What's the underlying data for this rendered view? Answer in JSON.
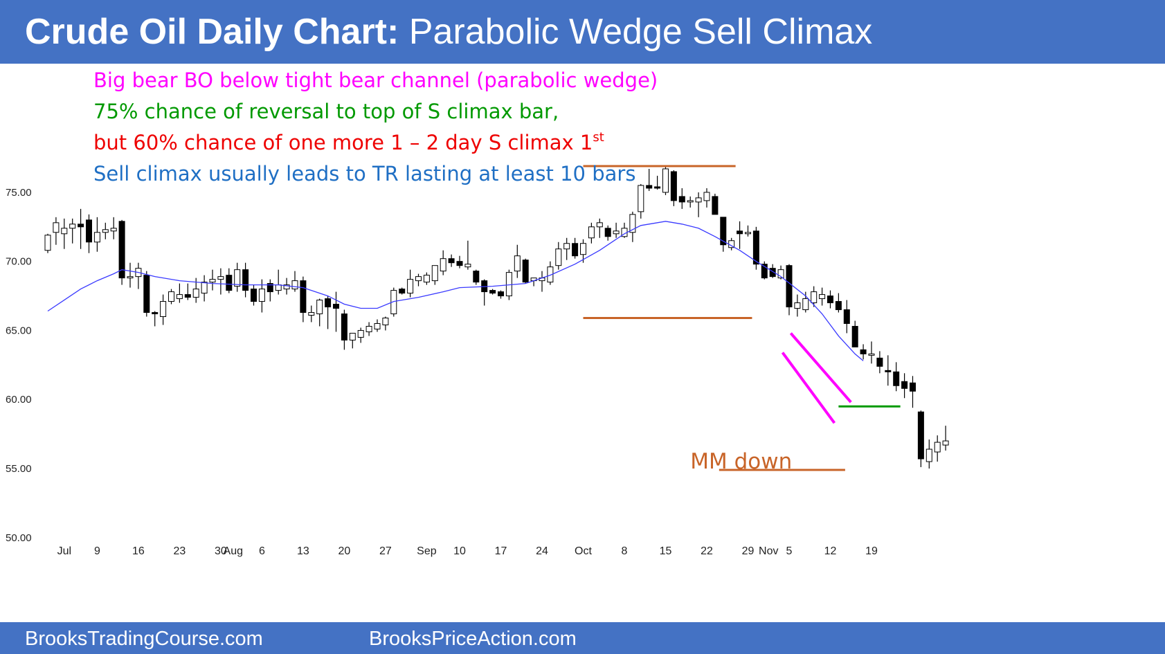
{
  "header": {
    "title_bold": "Crude Oil Daily Chart:",
    "title_rest": " Parabolic Wedge Sell Climax"
  },
  "footer": {
    "left_link": "BrooksTradingCourse.com",
    "right_link": "BrooksPriceAction.com"
  },
  "colors": {
    "header_bg": "#4472c4",
    "magenta": "#ff00ff",
    "green": "#009900",
    "red": "#ee0000",
    "blue_text": "#1f6fc4",
    "orange": "#c86428",
    "ema": "#3a3aff",
    "bull_fill": "#ffffff",
    "bear_fill": "#000000"
  },
  "annotations": [
    {
      "text": "Big bear BO below tight bear channel (parabolic wedge)",
      "color": "#ff00ff"
    },
    {
      "text": "75% chance of reversal to top of S climax bar,",
      "color": "#009900"
    },
    {
      "text": "but 60% chance of one more 1 – 2 day S climax 1",
      "sup": "st",
      "color": "#ee0000"
    },
    {
      "text": "Sell climax usually leads to TR lasting at least 10 bars",
      "color": "#1f6fc4"
    }
  ],
  "chart_data": {
    "type": "candlestick",
    "y_ticks": [
      "50.00",
      "55.00",
      "60.00",
      "65.00",
      "70.00",
      "75.00"
    ],
    "y_values": [
      50,
      55,
      60,
      65,
      70,
      75
    ],
    "ylim": [
      49,
      79
    ],
    "x_labels": [
      {
        "label": "Jul",
        "bar": 2
      },
      {
        "label": "9",
        "bar": 6
      },
      {
        "label": "16",
        "bar": 11
      },
      {
        "label": "23",
        "bar": 16
      },
      {
        "label": "30",
        "bar": 21
      },
      {
        "label": "Aug",
        "bar": 22.5
      },
      {
        "label": "6",
        "bar": 26
      },
      {
        "label": "13",
        "bar": 31
      },
      {
        "label": "20",
        "bar": 36
      },
      {
        "label": "27",
        "bar": 41
      },
      {
        "label": "Sep",
        "bar": 46
      },
      {
        "label": "10",
        "bar": 50
      },
      {
        "label": "17",
        "bar": 55
      },
      {
        "label": "24",
        "bar": 60
      },
      {
        "label": "Oct",
        "bar": 65
      },
      {
        "label": "8",
        "bar": 70
      },
      {
        "label": "15",
        "bar": 75
      },
      {
        "label": "22",
        "bar": 80
      },
      {
        "label": "29",
        "bar": 85
      },
      {
        "label": "Nov",
        "bar": 87.5
      },
      {
        "label": "5",
        "bar": 90
      },
      {
        "label": "12",
        "bar": 95
      },
      {
        "label": "19",
        "bar": 100
      }
    ],
    "candles": [
      {
        "o": 70.8,
        "h": 72.0,
        "l": 70.6,
        "c": 71.9
      },
      {
        "o": 72.1,
        "h": 73.2,
        "l": 71.2,
        "c": 72.8
      },
      {
        "o": 72.0,
        "h": 73.1,
        "l": 70.9,
        "c": 72.4
      },
      {
        "o": 72.4,
        "h": 73.1,
        "l": 71.3,
        "c": 72.7
      },
      {
        "o": 72.7,
        "h": 73.8,
        "l": 70.9,
        "c": 72.5
      },
      {
        "o": 73.0,
        "h": 73.4,
        "l": 70.6,
        "c": 71.4
      },
      {
        "o": 71.4,
        "h": 73.2,
        "l": 70.7,
        "c": 72.1
      },
      {
        "o": 72.1,
        "h": 72.8,
        "l": 71.6,
        "c": 72.3
      },
      {
        "o": 72.2,
        "h": 73.2,
        "l": 71.6,
        "c": 72.4
      },
      {
        "o": 72.9,
        "h": 73.0,
        "l": 68.3,
        "c": 68.8
      },
      {
        "o": 68.8,
        "h": 69.9,
        "l": 68.1,
        "c": 68.9
      },
      {
        "o": 68.9,
        "h": 69.9,
        "l": 68.0,
        "c": 69.5
      },
      {
        "o": 69.0,
        "h": 69.3,
        "l": 66.0,
        "c": 66.3
      },
      {
        "o": 66.3,
        "h": 66.4,
        "l": 65.3,
        "c": 66.2
      },
      {
        "o": 66.0,
        "h": 67.6,
        "l": 65.4,
        "c": 67.1
      },
      {
        "o": 67.1,
        "h": 68.0,
        "l": 66.9,
        "c": 67.8
      },
      {
        "o": 67.3,
        "h": 68.4,
        "l": 67.0,
        "c": 67.6
      },
      {
        "o": 67.6,
        "h": 68.4,
        "l": 67.2,
        "c": 67.4
      },
      {
        "o": 67.4,
        "h": 68.8,
        "l": 67.0,
        "c": 68.0
      },
      {
        "o": 67.7,
        "h": 69.0,
        "l": 67.1,
        "c": 68.5
      },
      {
        "o": 68.5,
        "h": 69.4,
        "l": 67.9,
        "c": 68.7
      },
      {
        "o": 68.7,
        "h": 69.5,
        "l": 67.6,
        "c": 68.9
      },
      {
        "o": 69.0,
        "h": 69.5,
        "l": 67.7,
        "c": 67.9
      },
      {
        "o": 68.2,
        "h": 69.9,
        "l": 67.8,
        "c": 69.4
      },
      {
        "o": 69.4,
        "h": 69.9,
        "l": 67.4,
        "c": 67.9
      },
      {
        "o": 68.0,
        "h": 68.3,
        "l": 66.8,
        "c": 67.1
      },
      {
        "o": 67.1,
        "h": 68.7,
        "l": 66.3,
        "c": 68.0
      },
      {
        "o": 68.4,
        "h": 68.7,
        "l": 67.1,
        "c": 67.8
      },
      {
        "o": 67.9,
        "h": 69.4,
        "l": 67.6,
        "c": 68.3
      },
      {
        "o": 68.0,
        "h": 68.8,
        "l": 67.6,
        "c": 68.3
      },
      {
        "o": 68.0,
        "h": 69.3,
        "l": 67.8,
        "c": 68.6
      },
      {
        "o": 68.6,
        "h": 68.9,
        "l": 65.6,
        "c": 66.3
      },
      {
        "o": 66.1,
        "h": 66.8,
        "l": 65.6,
        "c": 66.3
      },
      {
        "o": 66.2,
        "h": 67.3,
        "l": 65.3,
        "c": 67.2
      },
      {
        "o": 67.3,
        "h": 67.5,
        "l": 65.1,
        "c": 66.7
      },
      {
        "o": 66.9,
        "h": 67.8,
        "l": 64.9,
        "c": 66.6
      },
      {
        "o": 66.2,
        "h": 66.5,
        "l": 63.6,
        "c": 64.3
      },
      {
        "o": 64.3,
        "h": 64.7,
        "l": 63.7,
        "c": 64.8
      },
      {
        "o": 64.5,
        "h": 65.2,
        "l": 64.1,
        "c": 65.0
      },
      {
        "o": 64.9,
        "h": 65.6,
        "l": 64.6,
        "c": 65.3
      },
      {
        "o": 65.1,
        "h": 65.8,
        "l": 64.9,
        "c": 65.5
      },
      {
        "o": 65.4,
        "h": 66.0,
        "l": 65.0,
        "c": 65.9
      },
      {
        "o": 66.2,
        "h": 68.1,
        "l": 66.0,
        "c": 67.9
      },
      {
        "o": 68.0,
        "h": 68.1,
        "l": 67.6,
        "c": 67.7
      },
      {
        "o": 67.7,
        "h": 69.4,
        "l": 67.4,
        "c": 68.7
      },
      {
        "o": 68.6,
        "h": 69.1,
        "l": 68.2,
        "c": 68.9
      },
      {
        "o": 68.5,
        "h": 69.2,
        "l": 68.3,
        "c": 69.0
      },
      {
        "o": 68.6,
        "h": 69.6,
        "l": 68.3,
        "c": 69.7
      },
      {
        "o": 69.3,
        "h": 70.8,
        "l": 69.0,
        "c": 70.2
      },
      {
        "o": 70.2,
        "h": 70.5,
        "l": 69.6,
        "c": 69.9
      },
      {
        "o": 70.0,
        "h": 70.4,
        "l": 69.5,
        "c": 69.7
      },
      {
        "o": 69.6,
        "h": 71.5,
        "l": 69.4,
        "c": 69.8
      },
      {
        "o": 69.3,
        "h": 69.4,
        "l": 68.3,
        "c": 68.5
      },
      {
        "o": 68.6,
        "h": 68.7,
        "l": 66.8,
        "c": 67.8
      },
      {
        "o": 67.9,
        "h": 68.0,
        "l": 67.6,
        "c": 67.7
      },
      {
        "o": 67.8,
        "h": 67.9,
        "l": 67.3,
        "c": 67.5
      },
      {
        "o": 67.5,
        "h": 69.4,
        "l": 67.2,
        "c": 69.2
      },
      {
        "o": 69.3,
        "h": 71.2,
        "l": 68.8,
        "c": 70.4
      },
      {
        "o": 70.1,
        "h": 70.2,
        "l": 68.4,
        "c": 68.5
      },
      {
        "o": 68.6,
        "h": 68.8,
        "l": 68.2,
        "c": 68.8
      },
      {
        "o": 68.6,
        "h": 69.3,
        "l": 67.8,
        "c": 68.8
      },
      {
        "o": 68.5,
        "h": 70.0,
        "l": 68.3,
        "c": 69.6
      },
      {
        "o": 69.7,
        "h": 71.4,
        "l": 69.4,
        "c": 70.9
      },
      {
        "o": 70.9,
        "h": 71.7,
        "l": 70.1,
        "c": 71.3
      },
      {
        "o": 71.3,
        "h": 71.7,
        "l": 70.2,
        "c": 70.4
      },
      {
        "o": 70.5,
        "h": 71.6,
        "l": 69.9,
        "c": 71.3
      },
      {
        "o": 71.7,
        "h": 72.8,
        "l": 71.3,
        "c": 72.5
      },
      {
        "o": 72.5,
        "h": 73.1,
        "l": 71.7,
        "c": 72.8
      },
      {
        "o": 72.4,
        "h": 72.6,
        "l": 71.5,
        "c": 71.8
      },
      {
        "o": 72.0,
        "h": 72.8,
        "l": 71.7,
        "c": 72.2
      },
      {
        "o": 71.8,
        "h": 72.8,
        "l": 71.7,
        "c": 72.4
      },
      {
        "o": 72.1,
        "h": 73.6,
        "l": 71.4,
        "c": 73.4
      },
      {
        "o": 73.6,
        "h": 75.6,
        "l": 73.1,
        "c": 75.5
      },
      {
        "o": 75.5,
        "h": 76.7,
        "l": 75.1,
        "c": 75.3
      },
      {
        "o": 75.4,
        "h": 76.2,
        "l": 75.2,
        "c": 75.3
      },
      {
        "o": 75.0,
        "h": 76.9,
        "l": 74.8,
        "c": 76.7
      },
      {
        "o": 76.5,
        "h": 76.6,
        "l": 74.0,
        "c": 74.4
      },
      {
        "o": 74.7,
        "h": 75.3,
        "l": 73.8,
        "c": 74.3
      },
      {
        "o": 74.3,
        "h": 74.7,
        "l": 73.9,
        "c": 74.4
      },
      {
        "o": 74.3,
        "h": 75.0,
        "l": 73.2,
        "c": 74.6
      },
      {
        "o": 74.4,
        "h": 75.3,
        "l": 73.9,
        "c": 75.0
      },
      {
        "o": 74.7,
        "h": 74.9,
        "l": 73.7,
        "c": 73.4
      },
      {
        "o": 73.2,
        "h": 73.2,
        "l": 70.7,
        "c": 71.2
      },
      {
        "o": 71.0,
        "h": 71.7,
        "l": 70.8,
        "c": 71.5
      },
      {
        "o": 72.2,
        "h": 72.9,
        "l": 70.9,
        "c": 72.0
      },
      {
        "o": 72.0,
        "h": 72.6,
        "l": 71.8,
        "c": 72.1
      },
      {
        "o": 72.2,
        "h": 72.5,
        "l": 69.4,
        "c": 69.8
      },
      {
        "o": 69.8,
        "h": 70.0,
        "l": 68.7,
        "c": 68.8
      },
      {
        "o": 69.5,
        "h": 69.8,
        "l": 68.8,
        "c": 68.9
      },
      {
        "o": 68.8,
        "h": 69.7,
        "l": 68.7,
        "c": 69.4
      },
      {
        "o": 69.7,
        "h": 69.8,
        "l": 66.1,
        "c": 66.7
      },
      {
        "o": 66.6,
        "h": 67.6,
        "l": 66.0,
        "c": 67.0
      },
      {
        "o": 66.5,
        "h": 67.8,
        "l": 66.3,
        "c": 67.3
      },
      {
        "o": 67.0,
        "h": 68.2,
        "l": 66.7,
        "c": 67.8
      },
      {
        "o": 67.3,
        "h": 68.1,
        "l": 66.8,
        "c": 67.6
      },
      {
        "o": 67.5,
        "h": 67.9,
        "l": 66.6,
        "c": 67.0
      },
      {
        "o": 67.1,
        "h": 67.7,
        "l": 66.3,
        "c": 66.5
      },
      {
        "o": 66.5,
        "h": 67.2,
        "l": 64.8,
        "c": 65.5
      },
      {
        "o": 65.3,
        "h": 65.7,
        "l": 63.8,
        "c": 63.8
      },
      {
        "o": 63.6,
        "h": 64.0,
        "l": 62.9,
        "c": 63.3
      },
      {
        "o": 63.2,
        "h": 64.2,
        "l": 62.6,
        "c": 63.3
      },
      {
        "o": 63.0,
        "h": 63.5,
        "l": 61.9,
        "c": 62.4
      },
      {
        "o": 62.1,
        "h": 63.2,
        "l": 61.0,
        "c": 62.0
      },
      {
        "o": 62.0,
        "h": 62.7,
        "l": 60.6,
        "c": 61.0
      },
      {
        "o": 61.3,
        "h": 61.9,
        "l": 60.1,
        "c": 60.8
      },
      {
        "o": 61.2,
        "h": 61.7,
        "l": 59.4,
        "c": 60.6
      },
      {
        "o": 59.1,
        "h": 59.2,
        "l": 55.1,
        "c": 55.7
      },
      {
        "o": 55.5,
        "h": 57.1,
        "l": 55.0,
        "c": 56.4
      },
      {
        "o": 56.2,
        "h": 57.4,
        "l": 55.5,
        "c": 56.9
      },
      {
        "o": 56.7,
        "h": 58.1,
        "l": 56.3,
        "c": 57.0
      }
    ],
    "ema": [
      {
        "bar": 0,
        "v": 66.4
      },
      {
        "bar": 2,
        "v": 67.2
      },
      {
        "bar": 4,
        "v": 68.0
      },
      {
        "bar": 6,
        "v": 68.6
      },
      {
        "bar": 8,
        "v": 69.1
      },
      {
        "bar": 9,
        "v": 69.4
      },
      {
        "bar": 11,
        "v": 69.2
      },
      {
        "bar": 13,
        "v": 68.9
      },
      {
        "bar": 16,
        "v": 68.6
      },
      {
        "bar": 20,
        "v": 68.4
      },
      {
        "bar": 24,
        "v": 68.3
      },
      {
        "bar": 28,
        "v": 68.3
      },
      {
        "bar": 31,
        "v": 68.1
      },
      {
        "bar": 34,
        "v": 67.5
      },
      {
        "bar": 36,
        "v": 66.9
      },
      {
        "bar": 38,
        "v": 66.6
      },
      {
        "bar": 40,
        "v": 66.6
      },
      {
        "bar": 42,
        "v": 67.1
      },
      {
        "bar": 45,
        "v": 67.4
      },
      {
        "bar": 48,
        "v": 67.8
      },
      {
        "bar": 50,
        "v": 68.1
      },
      {
        "bar": 54,
        "v": 68.2
      },
      {
        "bar": 58,
        "v": 68.4
      },
      {
        "bar": 61,
        "v": 69.0
      },
      {
        "bar": 64,
        "v": 69.8
      },
      {
        "bar": 67,
        "v": 70.8
      },
      {
        "bar": 70,
        "v": 72.0
      },
      {
        "bar": 72,
        "v": 72.6
      },
      {
        "bar": 75,
        "v": 72.9
      },
      {
        "bar": 77,
        "v": 72.7
      },
      {
        "bar": 79,
        "v": 72.4
      },
      {
        "bar": 81,
        "v": 71.8
      },
      {
        "bar": 84,
        "v": 70.8
      },
      {
        "bar": 86,
        "v": 70.0
      },
      {
        "bar": 89,
        "v": 68.9
      },
      {
        "bar": 92,
        "v": 67.5
      },
      {
        "bar": 94,
        "v": 66.2
      },
      {
        "bar": 96,
        "v": 64.6
      },
      {
        "bar": 98,
        "v": 63.3
      },
      {
        "bar": 99,
        "v": 62.8
      }
    ],
    "lines": [
      {
        "name": "range-top-line",
        "color": "#c86428",
        "x1": 65,
        "x2": 83.5,
        "y": 76.9,
        "width": 3
      },
      {
        "name": "range-bottom-line",
        "color": "#c86428",
        "x1": 65,
        "x2": 85.5,
        "y": 65.9,
        "width": 3
      },
      {
        "name": "mm-down-line",
        "color": "#c86428",
        "x1": 81.5,
        "x2": 96.8,
        "y": 54.9,
        "width": 3
      },
      {
        "name": "climax-top-line",
        "color": "#009900",
        "x1": 96,
        "x2": 103.5,
        "y": 59.5,
        "width": 3
      },
      {
        "name": "wedge-upper-line",
        "color": "#ff00ff",
        "x1": 90.2,
        "x2": 97.5,
        "y1": 64.8,
        "y2": 59.8,
        "width": 4
      },
      {
        "name": "wedge-lower-line",
        "color": "#ff00ff",
        "x1": 89.2,
        "x2": 95.5,
        "y1": 63.4,
        "y2": 58.3,
        "width": 4
      }
    ],
    "labels": [
      {
        "name": "mm-down-label",
        "text": "MM down",
        "color": "#c86428",
        "bar": 77.5,
        "y": 55.0
      }
    ]
  }
}
